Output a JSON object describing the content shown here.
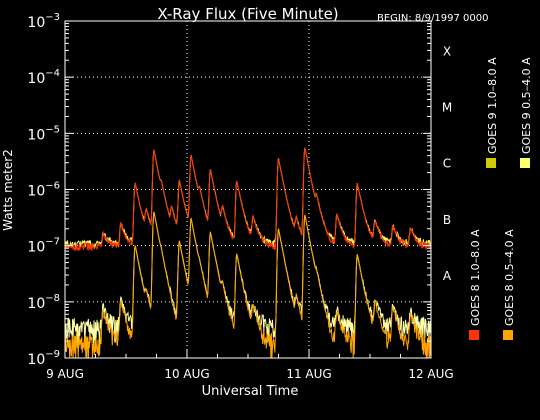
{
  "chart_data": {
    "type": "line",
    "title": "X-Ray Flux (Five Minute)",
    "begin_label": "BEGIN: 8/9/1997 0000",
    "xlabel": "Universal Time",
    "ylabel": "Watts meter2",
    "y_scale": "log",
    "ylim": [
      1e-09,
      0.001
    ],
    "xlim": [
      0,
      72
    ],
    "x_unit": "hours since 8/9/1997 0000",
    "x_ticks": [
      {
        "value": 0,
        "label": "9 AUG"
      },
      {
        "value": 24,
        "label": "10 AUG"
      },
      {
        "value": 48,
        "label": "11 AUG"
      },
      {
        "value": 72,
        "label": "12 AUG"
      }
    ],
    "y_ticks": [
      {
        "value": 0.001,
        "base": "10",
        "exp": "−3"
      },
      {
        "value": 0.0001,
        "base": "10",
        "exp": "−4"
      },
      {
        "value": 1e-05,
        "base": "10",
        "exp": "−5"
      },
      {
        "value": 1e-06,
        "base": "10",
        "exp": "−6"
      },
      {
        "value": 1e-07,
        "base": "10",
        "exp": "−7"
      },
      {
        "value": 1e-08,
        "base": "10",
        "exp": "−8"
      },
      {
        "value": 1e-09,
        "base": "10",
        "exp": "−9"
      }
    ],
    "class_labels": [
      {
        "label": "X",
        "value": 0.0003
      },
      {
        "label": "M",
        "value": 3e-05
      },
      {
        "label": "C",
        "value": 3e-06
      },
      {
        "label": "B",
        "value": 3e-07
      },
      {
        "label": "A",
        "value": 3e-08
      }
    ],
    "grid": {
      "horizontal": [
        0.0001,
        1e-05,
        1e-06,
        1e-07,
        1e-08
      ],
      "vertical": [
        24,
        48
      ]
    },
    "legend_position": "right, vertical",
    "peaks_long": [
      {
        "t": 7.5,
        "v": 1.6e-07
      },
      {
        "t": 11.0,
        "v": 2.4e-07
      },
      {
        "t": 13.8,
        "v": 1.3e-06
      },
      {
        "t": 16.0,
        "v": 3.5e-07
      },
      {
        "t": 17.5,
        "v": 5e-06
      },
      {
        "t": 19.0,
        "v": 4.5e-07
      },
      {
        "t": 21.0,
        "v": 3.5e-07
      },
      {
        "t": 22.5,
        "v": 1.4e-06
      },
      {
        "t": 24.8,
        "v": 4e-06
      },
      {
        "t": 26.5,
        "v": 5e-07
      },
      {
        "t": 28.6,
        "v": 2.2e-06
      },
      {
        "t": 31.0,
        "v": 3.5e-07
      },
      {
        "t": 33.8,
        "v": 1.4e-06
      },
      {
        "t": 37.0,
        "v": 3e-07
      },
      {
        "t": 42.0,
        "v": 3.6e-06
      },
      {
        "t": 45.5,
        "v": 2.5e-07
      },
      {
        "t": 47.2,
        "v": 5.5e-06
      },
      {
        "t": 49.5,
        "v": 4e-07
      },
      {
        "t": 53.5,
        "v": 3.5e-07
      },
      {
        "t": 57.5,
        "v": 1.3e-06
      },
      {
        "t": 61.0,
        "v": 2.6e-07
      },
      {
        "t": 64.5,
        "v": 2.2e-07
      },
      {
        "t": 68.0,
        "v": 2e-07
      }
    ],
    "peaks_short": [
      {
        "t": 7.5,
        "v": 7e-09
      },
      {
        "t": 11.0,
        "v": 1e-08
      },
      {
        "t": 13.8,
        "v": 1e-07
      },
      {
        "t": 16.0,
        "v": 8e-09
      },
      {
        "t": 17.5,
        "v": 4e-07
      },
      {
        "t": 19.0,
        "v": 1e-08
      },
      {
        "t": 22.5,
        "v": 1.2e-07
      },
      {
        "t": 24.8,
        "v": 3e-07
      },
      {
        "t": 26.5,
        "v": 1e-08
      },
      {
        "t": 28.6,
        "v": 1.7e-07
      },
      {
        "t": 31.0,
        "v": 1e-08
      },
      {
        "t": 33.8,
        "v": 7e-08
      },
      {
        "t": 37.0,
        "v": 7e-09
      },
      {
        "t": 42.0,
        "v": 2e-07
      },
      {
        "t": 45.5,
        "v": 9e-09
      },
      {
        "t": 47.2,
        "v": 3.5e-07
      },
      {
        "t": 49.5,
        "v": 1e-08
      },
      {
        "t": 53.5,
        "v": 6e-09
      },
      {
        "t": 57.5,
        "v": 7e-08
      },
      {
        "t": 61.0,
        "v": 9e-09
      },
      {
        "t": 64.5,
        "v": 8e-09
      },
      {
        "t": 68.0,
        "v": 6e-09
      }
    ],
    "series": [
      {
        "name": "GOES 8 1.0–8.0 A",
        "color": "#ff3300",
        "band": "long",
        "base": 9e-08
      },
      {
        "name": "GOES 8 0.5–4.0 A",
        "color": "#ffa500",
        "band": "short",
        "base": 1.4e-09
      },
      {
        "name": "GOES 9 1.0–8.0 A",
        "color": "#ffff66",
        "band": "long",
        "base": 1e-07
      },
      {
        "name": "GOES 9 0.5–4.0 A",
        "color": "#ffffaa",
        "band": "short",
        "base": 2.6e-09
      }
    ],
    "legend_swatch_colors": [
      "#ff3300",
      "#ffa500",
      "#cccc00",
      "#ffff66"
    ]
  }
}
